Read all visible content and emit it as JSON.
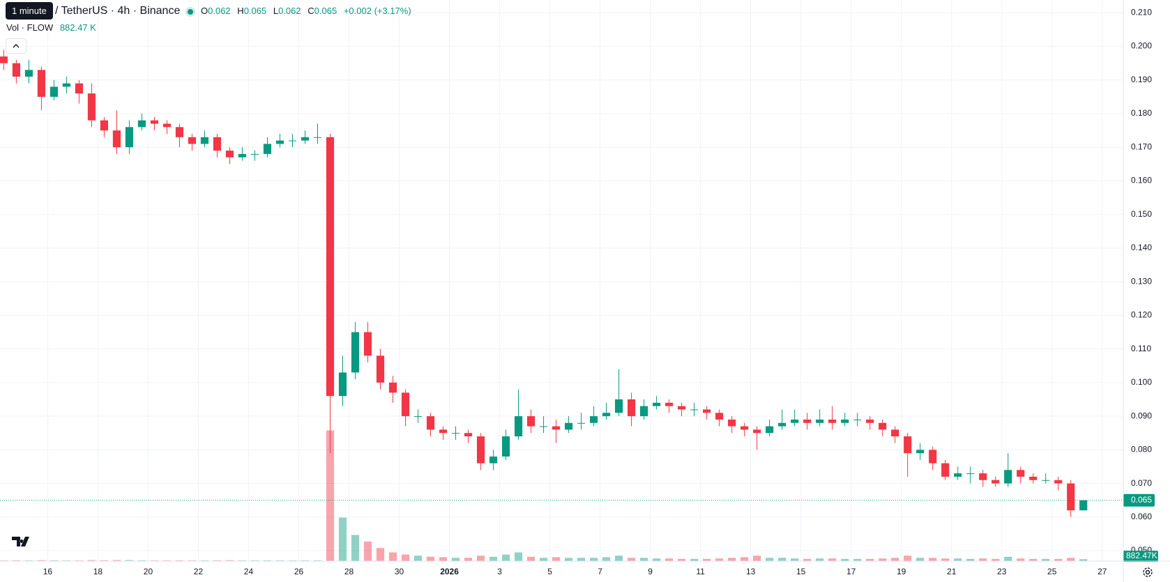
{
  "header": {
    "tooltip": "1 minute",
    "symbol": "/ TetherUS · 4h · Binance",
    "o_label": "O",
    "o": "0.062",
    "h_label": "H",
    "h": "0.065",
    "l_label": "L",
    "l": "0.062",
    "c_label": "C",
    "c": "0.065",
    "change": "+0.002 (+3.17%)",
    "vol_label": "Vol · FLOW",
    "vol": "882.47 K"
  },
  "chart_data": {
    "type": "candlestick",
    "up_color": "#089981",
    "down_color": "#f23645",
    "grid": true,
    "xlim": [
      0.1,
      44.84
    ],
    "ylim": [
      0.0469,
      0.2138
    ],
    "vlim": [
      0,
      80000000
    ],
    "xticks": [
      {
        "value": 2,
        "label": "16"
      },
      {
        "value": 4,
        "label": "18"
      },
      {
        "value": 6,
        "label": "20"
      },
      {
        "value": 8,
        "label": "22"
      },
      {
        "value": 10,
        "label": "24"
      },
      {
        "value": 12,
        "label": "26"
      },
      {
        "value": 14,
        "label": "28"
      },
      {
        "value": 16,
        "label": "30"
      },
      {
        "value": 18,
        "label": "2026"
      },
      {
        "value": 20,
        "label": "3"
      },
      {
        "value": 22,
        "label": "5"
      },
      {
        "value": 24,
        "label": "7"
      },
      {
        "value": 26,
        "label": "9"
      },
      {
        "value": 28,
        "label": "11"
      },
      {
        "value": 30,
        "label": "13"
      },
      {
        "value": 32,
        "label": "15"
      },
      {
        "value": 34,
        "label": "17"
      },
      {
        "value": 36,
        "label": "19"
      },
      {
        "value": 38,
        "label": "21"
      },
      {
        "value": 40,
        "label": "23"
      },
      {
        "value": 42,
        "label": "25"
      },
      {
        "value": 44,
        "label": "27"
      }
    ],
    "yticks": [
      {
        "value": 0.05,
        "label": "0.050"
      },
      {
        "value": 0.06,
        "label": "0.060"
      },
      {
        "value": 0.07,
        "label": "0.070"
      },
      {
        "value": 0.08,
        "label": "0.080"
      },
      {
        "value": 0.09,
        "label": "0.090"
      },
      {
        "value": 0.1,
        "label": "0.100"
      },
      {
        "value": 0.11,
        "label": "0.110"
      },
      {
        "value": 0.12,
        "label": "0.120"
      },
      {
        "value": 0.13,
        "label": "0.130"
      },
      {
        "value": 0.14,
        "label": "0.140"
      },
      {
        "value": 0.15,
        "label": "0.150"
      },
      {
        "value": 0.16,
        "label": "0.160"
      },
      {
        "value": 0.17,
        "label": "0.170"
      },
      {
        "value": 0.18,
        "label": "0.180"
      },
      {
        "value": 0.19,
        "label": "0.190"
      },
      {
        "value": 0.2,
        "label": "0.200"
      },
      {
        "value": 0.21,
        "label": "0.210"
      }
    ],
    "last_price": 0.065,
    "volume_label": "882.47K",
    "x": [
      0.25,
      0.75,
      1.25,
      1.75,
      2.25,
      2.75,
      3.25,
      3.75,
      4.25,
      4.75,
      5.25,
      5.75,
      6.25,
      6.75,
      7.25,
      7.75,
      8.25,
      8.75,
      9.25,
      9.75,
      10.25,
      10.75,
      11.25,
      11.75,
      12.25,
      12.75,
      13.25,
      13.75,
      14.25,
      14.75,
      15.25,
      15.75,
      16.25,
      16.75,
      17.25,
      17.75,
      18.25,
      18.75,
      19.25,
      19.75,
      20.25,
      20.75,
      21.25,
      21.75,
      22.25,
      22.75,
      23.25,
      23.75,
      24.25,
      24.75,
      25.25,
      25.75,
      26.25,
      26.75,
      27.25,
      27.75,
      28.25,
      28.75,
      29.25,
      29.75,
      30.25,
      30.75,
      31.25,
      31.75,
      32.25,
      32.75,
      33.25,
      33.75,
      34.25,
      34.75,
      35.25,
      35.75,
      36.25,
      36.75,
      37.25,
      37.75,
      38.25,
      38.75,
      39.25,
      39.75,
      40.25,
      40.75,
      41.25,
      41.75,
      42.25,
      42.75,
      43.25
    ],
    "open": [
      0.197,
      0.195,
      0.191,
      0.193,
      0.185,
      0.188,
      0.189,
      0.186,
      0.178,
      0.175,
      0.17,
      0.176,
      0.178,
      0.177,
      0.176,
      0.173,
      0.171,
      0.173,
      0.169,
      0.167,
      0.168,
      0.168,
      0.171,
      0.172,
      0.172,
      0.173,
      0.173,
      0.096,
      0.103,
      0.115,
      0.108,
      0.1,
      0.097,
      0.09,
      0.09,
      0.086,
      0.085,
      0.085,
      0.084,
      0.076,
      0.078,
      0.084,
      0.09,
      0.087,
      0.087,
      0.086,
      0.088,
      0.088,
      0.09,
      0.091,
      0.095,
      0.09,
      0.093,
      0.094,
      0.093,
      0.092,
      0.092,
      0.091,
      0.089,
      0.087,
      0.086,
      0.085,
      0.087,
      0.088,
      0.089,
      0.088,
      0.089,
      0.088,
      0.089,
      0.089,
      0.088,
      0.086,
      0.084,
      0.079,
      0.08,
      0.076,
      0.072,
      0.073,
      0.073,
      0.071,
      0.07,
      0.074,
      0.072,
      0.071,
      0.071,
      0.07,
      0.062
    ],
    "high": [
      0.199,
      0.196,
      0.196,
      0.194,
      0.19,
      0.191,
      0.19,
      0.189,
      0.179,
      0.181,
      0.178,
      0.18,
      0.179,
      0.178,
      0.177,
      0.174,
      0.175,
      0.174,
      0.17,
      0.17,
      0.169,
      0.173,
      0.174,
      0.174,
      0.175,
      0.177,
      0.174,
      0.108,
      0.118,
      0.118,
      0.11,
      0.102,
      0.098,
      0.092,
      0.091,
      0.087,
      0.087,
      0.086,
      0.085,
      0.08,
      0.086,
      0.098,
      0.092,
      0.09,
      0.089,
      0.09,
      0.091,
      0.093,
      0.094,
      0.104,
      0.097,
      0.095,
      0.096,
      0.095,
      0.094,
      0.094,
      0.093,
      0.092,
      0.09,
      0.088,
      0.087,
      0.089,
      0.092,
      0.092,
      0.091,
      0.092,
      0.093,
      0.091,
      0.091,
      0.09,
      0.089,
      0.087,
      0.085,
      0.082,
      0.081,
      0.077,
      0.075,
      0.075,
      0.074,
      0.072,
      0.079,
      0.075,
      0.073,
      0.073,
      0.072,
      0.071,
      0.065
    ],
    "low": [
      0.193,
      0.189,
      0.189,
      0.181,
      0.184,
      0.186,
      0.183,
      0.176,
      0.173,
      0.168,
      0.168,
      0.175,
      0.175,
      0.174,
      0.17,
      0.169,
      0.17,
      0.167,
      0.165,
      0.166,
      0.166,
      0.167,
      0.17,
      0.17,
      0.171,
      0.171,
      0.079,
      0.093,
      0.101,
      0.106,
      0.098,
      0.094,
      0.087,
      0.088,
      0.084,
      0.083,
      0.083,
      0.082,
      0.074,
      0.074,
      0.077,
      0.083,
      0.085,
      0.085,
      0.082,
      0.085,
      0.086,
      0.087,
      0.089,
      0.09,
      0.087,
      0.089,
      0.092,
      0.091,
      0.09,
      0.09,
      0.089,
      0.087,
      0.085,
      0.084,
      0.08,
      0.084,
      0.086,
      0.087,
      0.086,
      0.087,
      0.086,
      0.087,
      0.087,
      0.086,
      0.084,
      0.082,
      0.072,
      0.077,
      0.074,
      0.071,
      0.071,
      0.07,
      0.069,
      0.069,
      0.069,
      0.07,
      0.07,
      0.07,
      0.068,
      0.06,
      0.062
    ],
    "close": [
      0.195,
      0.191,
      0.193,
      0.185,
      0.188,
      0.189,
      0.186,
      0.178,
      0.175,
      0.17,
      0.176,
      0.178,
      0.177,
      0.176,
      0.173,
      0.171,
      0.173,
      0.169,
      0.167,
      0.168,
      0.168,
      0.171,
      0.172,
      0.172,
      0.173,
      0.173,
      0.096,
      0.103,
      0.115,
      0.108,
      0.1,
      0.097,
      0.09,
      0.09,
      0.086,
      0.085,
      0.085,
      0.084,
      0.076,
      0.078,
      0.084,
      0.09,
      0.087,
      0.087,
      0.086,
      0.088,
      0.088,
      0.09,
      0.091,
      0.095,
      0.09,
      0.093,
      0.094,
      0.093,
      0.092,
      0.092,
      0.091,
      0.089,
      0.087,
      0.086,
      0.085,
      0.087,
      0.088,
      0.089,
      0.088,
      0.089,
      0.088,
      0.089,
      0.089,
      0.088,
      0.086,
      0.084,
      0.079,
      0.08,
      0.076,
      0.072,
      0.073,
      0.073,
      0.071,
      0.07,
      0.074,
      0.072,
      0.071,
      0.071,
      0.07,
      0.062,
      0.065
    ],
    "volume": [
      300000,
      350000,
      300000,
      400000,
      350000,
      300000,
      300000,
      450000,
      400000,
      500000,
      450000,
      350000,
      300000,
      300000,
      350000,
      300000,
      300000,
      350000,
      400000,
      300000,
      300000,
      350000,
      300000,
      300000,
      300000,
      350000,
      60000000,
      20000000,
      12000000,
      9000000,
      6000000,
      4000000,
      3000000,
      2500000,
      2000000,
      1800000,
      1500000,
      1500000,
      2500000,
      2000000,
      3000000,
      4000000,
      2000000,
      1500000,
      1800000,
      1500000,
      1500000,
      1500000,
      1800000,
      2500000,
      1500000,
      1500000,
      1200000,
      1200000,
      1000000,
      1000000,
      1000000,
      1200000,
      1500000,
      1800000,
      2500000,
      1500000,
      1500000,
      1200000,
      1000000,
      1200000,
      1200000,
      1000000,
      1000000,
      1000000,
      1200000,
      1500000,
      2500000,
      1500000,
      1500000,
      1200000,
      1200000,
      1000000,
      1200000,
      1000000,
      2000000,
      1200000,
      1000000,
      1000000,
      1000000,
      1500000,
      882470
    ]
  }
}
